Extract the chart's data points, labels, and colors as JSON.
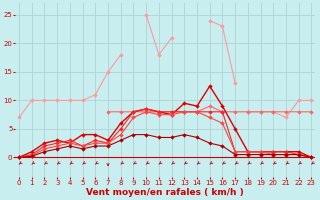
{
  "x": [
    0,
    1,
    2,
    3,
    4,
    5,
    6,
    7,
    8,
    9,
    10,
    11,
    12,
    13,
    14,
    15,
    16,
    17,
    18,
    19,
    20,
    21,
    22,
    23
  ],
  "series": [
    {
      "name": "light_pink_rising",
      "color": "#FF9999",
      "lw": 0.8,
      "values": [
        7,
        10,
        10,
        10,
        10,
        10,
        11,
        15,
        18,
        null,
        25,
        18,
        21,
        null,
        null,
        24,
        23,
        13,
        null,
        null,
        null,
        null,
        null,
        null
      ]
    },
    {
      "name": "pink_flat_right",
      "color": "#FF9999",
      "lw": 0.8,
      "values": [
        null,
        null,
        null,
        null,
        null,
        null,
        null,
        null,
        null,
        null,
        null,
        null,
        null,
        null,
        null,
        null,
        null,
        null,
        8,
        8,
        8,
        7,
        10,
        10
      ]
    },
    {
      "name": "medium_pink",
      "color": "#FF6666",
      "lw": 0.8,
      "values": [
        null,
        null,
        null,
        null,
        null,
        null,
        null,
        8,
        8,
        8,
        8,
        8,
        8,
        8,
        8,
        9,
        8,
        8,
        8,
        8,
        8,
        8,
        8,
        8
      ]
    },
    {
      "name": "dark_red_main",
      "color": "#DD0000",
      "lw": 1.0,
      "values": [
        0,
        1,
        2.5,
        3,
        2.5,
        4,
        4,
        3,
        6,
        8,
        8.5,
        8,
        7.5,
        9.5,
        9,
        12.5,
        9,
        5,
        1,
        1,
        1,
        1,
        1,
        0
      ]
    },
    {
      "name": "red_curve1",
      "color": "#FF2222",
      "lw": 0.8,
      "values": [
        0,
        0.5,
        2,
        2.5,
        3,
        2,
        3,
        2.5,
        5,
        8,
        8.5,
        8,
        8,
        8,
        8,
        8,
        8,
        1,
        1,
        1,
        1,
        1,
        0.5,
        0
      ]
    },
    {
      "name": "red_curve2",
      "color": "#FF4444",
      "lw": 0.8,
      "values": [
        0,
        0.3,
        1.5,
        2,
        2.5,
        2,
        2.5,
        2.5,
        4,
        7,
        8,
        7.5,
        7.5,
        8,
        8,
        7,
        6,
        1,
        1,
        1,
        0.5,
        0.5,
        0.5,
        0
      ]
    },
    {
      "name": "dark_bottom",
      "color": "#AA0000",
      "lw": 0.8,
      "values": [
        0,
        0.2,
        1,
        1.5,
        2,
        1.5,
        2,
        2,
        3,
        4,
        4,
        3.5,
        3.5,
        4,
        3.5,
        2.5,
        2,
        0.5,
        0.5,
        0.5,
        0.5,
        0.5,
        0.5,
        0
      ]
    }
  ],
  "xlabel": "Vent moyen/en rafales ( km/h )",
  "ylim": [
    -3.5,
    27
  ],
  "xlim": [
    -0.3,
    23.3
  ],
  "yticks": [
    0,
    5,
    10,
    15,
    20,
    25
  ],
  "xticks": [
    0,
    1,
    2,
    3,
    4,
    5,
    6,
    7,
    8,
    9,
    10,
    11,
    12,
    13,
    14,
    15,
    16,
    17,
    18,
    19,
    20,
    21,
    22,
    23
  ],
  "bg_color": "#C8EEF0",
  "grid_color": "#AACCCC",
  "arrow_color": "#CC0000",
  "xlabel_color": "#CC0000",
  "xtick_color": "#CC0000",
  "ytick_color": "#CC0000",
  "xlabel_fontsize": 6.5,
  "tick_fontsize": 5.0,
  "markersize": 2.0
}
